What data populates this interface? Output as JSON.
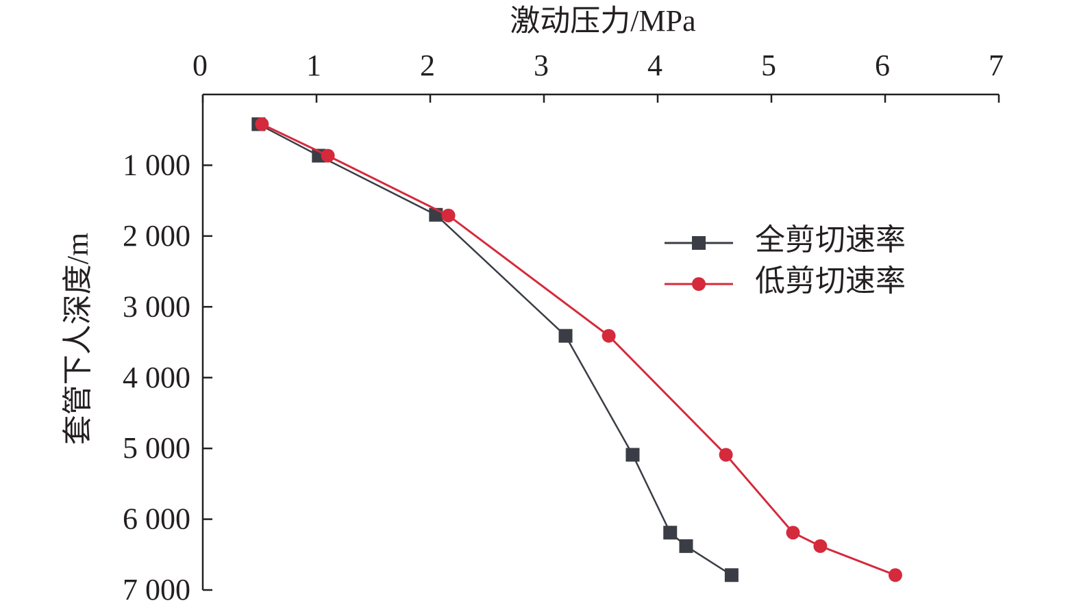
{
  "chart_data": {
    "type": "line",
    "x_label": "激动压力/MPa",
    "y_label": "套管下人深度/m",
    "xlim": [
      0,
      7
    ],
    "xticks": [
      0,
      1,
      2,
      3,
      4,
      5,
      6,
      7
    ],
    "ylim": [
      0,
      7000
    ],
    "yticks": [
      {
        "value": 1000,
        "label": "1 000"
      },
      {
        "value": 2000,
        "label": "2 000"
      },
      {
        "value": 3000,
        "label": "3 000"
      },
      {
        "value": 4000,
        "label": "4 000"
      },
      {
        "value": 5000,
        "label": "5 000"
      },
      {
        "value": 6000,
        "label": "6 000"
      },
      {
        "value": 7000,
        "label": "7 000"
      }
    ],
    "y_inverted": true,
    "legend": "upper right",
    "series": [
      {
        "name": "全剪切速率",
        "color": "#3a3d45",
        "marker": "square",
        "x": [
          0.49,
          1.02,
          2.05,
          3.19,
          3.78,
          4.11,
          4.25,
          4.65
        ],
        "values": [
          420,
          865,
          1700,
          3410,
          5090,
          6190,
          6380,
          6790
        ]
      },
      {
        "name": "低剪切速率",
        "color": "#d42a3c",
        "marker": "circle",
        "x": [
          0.52,
          1.1,
          2.16,
          3.57,
          4.6,
          5.19,
          5.43,
          6.09
        ],
        "values": [
          420,
          865,
          1710,
          3410,
          5090,
          6190,
          6380,
          6790
        ]
      }
    ]
  }
}
